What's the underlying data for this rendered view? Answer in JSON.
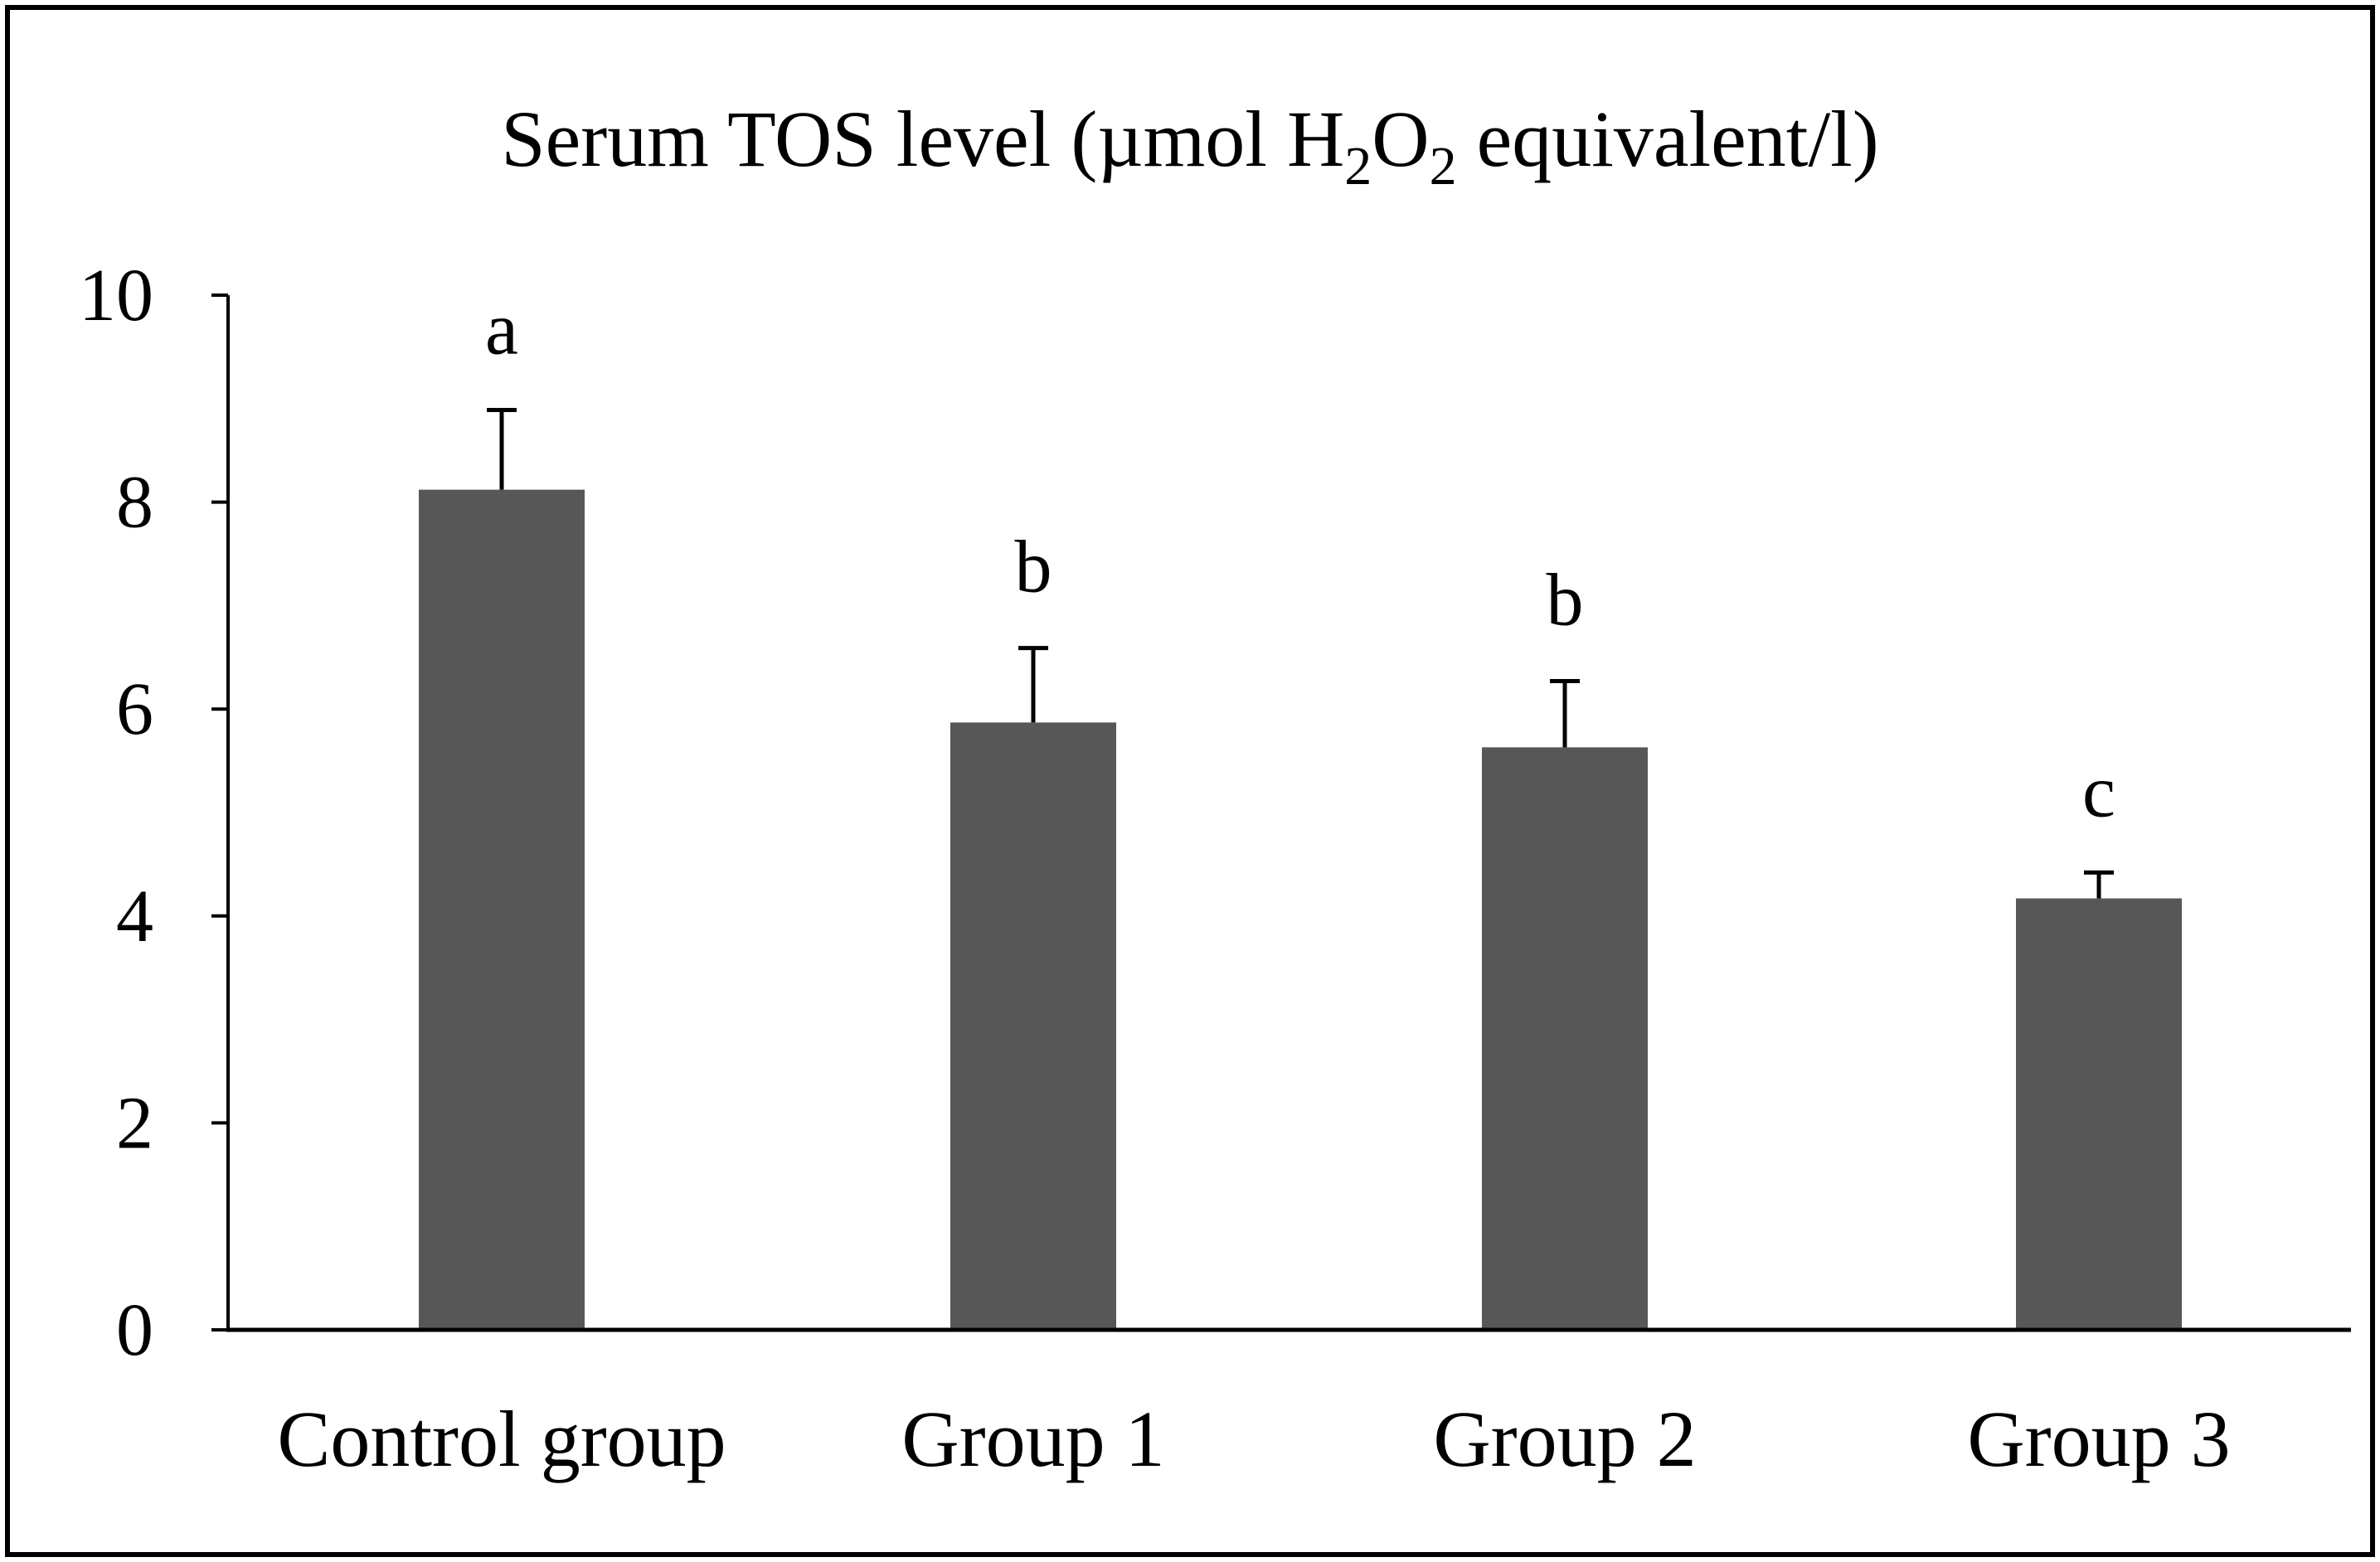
{
  "chart_data": {
    "type": "bar",
    "title": {
      "prefix": "Serum TOS level (µmol H",
      "sub1": "2",
      "mid": "O",
      "sub2": "2",
      "suffix": " equivalent/l)"
    },
    "xlabel": "",
    "ylabel": "",
    "ylim": [
      0,
      10
    ],
    "yticks": [
      "0",
      "2",
      "4",
      "6",
      "8",
      "10"
    ],
    "grid": false,
    "legend": "none",
    "categories": [
      "Control group",
      "Group 1",
      "Group 2",
      "Group 3"
    ],
    "values": [
      8.12,
      5.87,
      5.63,
      4.17
    ],
    "errors": [
      0.77,
      0.72,
      0.64,
      0.25
    ],
    "annotations": [
      "a",
      "b",
      "b",
      "c"
    ],
    "bar_color": "#575757",
    "axis_color": "#000000",
    "frame_color": "#000000"
  }
}
